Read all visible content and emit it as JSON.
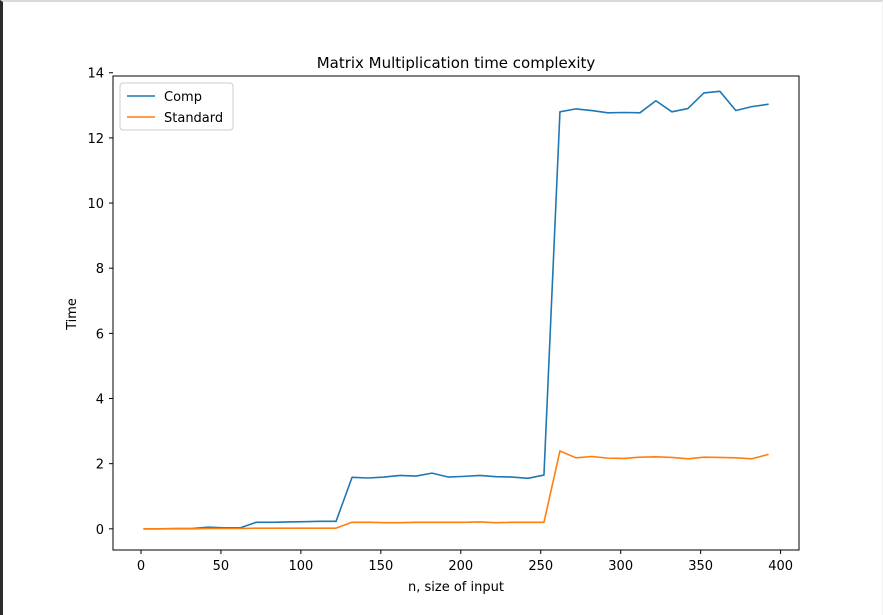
{
  "chart_data": {
    "type": "line",
    "title": "Matrix Multiplication time complexity",
    "xlabel": "n, size of input",
    "ylabel": "Time",
    "xlim": [
      -17.5,
      411.5
    ],
    "ylim": [
      -0.65,
      13.9
    ],
    "xticks": [
      0,
      50,
      100,
      150,
      200,
      250,
      300,
      350,
      400
    ],
    "yticks": [
      0,
      2,
      4,
      6,
      8,
      10,
      12,
      14
    ],
    "grid": false,
    "legend_position": "top-left",
    "x": [
      2,
      12,
      22,
      32,
      42,
      52,
      62,
      72,
      82,
      92,
      102,
      112,
      122,
      132,
      142,
      152,
      162,
      172,
      182,
      192,
      202,
      212,
      222,
      232,
      242,
      252,
      262,
      272,
      282,
      292,
      302,
      312,
      322,
      332,
      342,
      352,
      362,
      372,
      382,
      392
    ],
    "series": [
      {
        "name": "Comp",
        "color": "#1f77b4",
        "values": [
          0.0,
          0.0,
          0.01,
          0.01,
          0.05,
          0.03,
          0.03,
          0.2,
          0.2,
          0.21,
          0.22,
          0.23,
          0.23,
          1.58,
          1.56,
          1.59,
          1.64,
          1.62,
          1.71,
          1.59,
          1.61,
          1.64,
          1.6,
          1.59,
          1.55,
          1.65,
          12.8,
          12.89,
          12.84,
          12.77,
          12.78,
          12.77,
          13.14,
          12.8,
          12.9,
          13.38,
          13.43,
          12.84,
          12.96,
          13.03
        ]
      },
      {
        "name": "Standard",
        "color": "#ff7f0e",
        "values": [
          0.0,
          0.0,
          0.0,
          0.0,
          0.01,
          0.01,
          0.01,
          0.02,
          0.02,
          0.02,
          0.02,
          0.02,
          0.02,
          0.2,
          0.2,
          0.19,
          0.19,
          0.2,
          0.2,
          0.2,
          0.2,
          0.21,
          0.19,
          0.2,
          0.2,
          0.2,
          2.39,
          2.18,
          2.22,
          2.17,
          2.16,
          2.2,
          2.21,
          2.19,
          2.15,
          2.2,
          2.19,
          2.18,
          2.15,
          2.28
        ]
      }
    ]
  }
}
